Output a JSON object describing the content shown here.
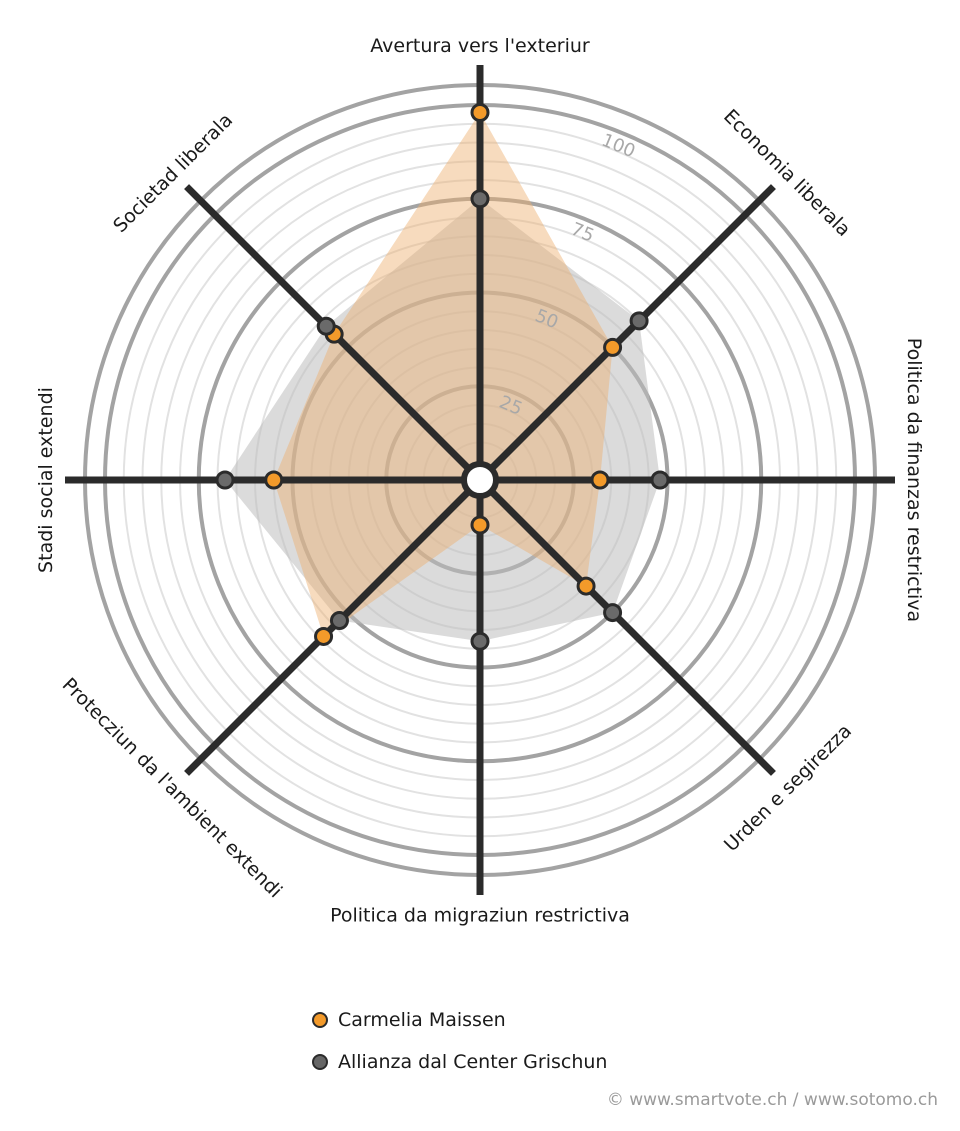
{
  "chart_data": {
    "type": "radar",
    "axes": [
      "Avertura vers l'exteriur",
      "Economia liberala",
      "Politica da finanzas restrictiva",
      "Urden e segirezza",
      "Politica da migraziun restrictiva",
      "Protecziun da l'ambient extendi",
      "Stadi social extendi",
      "Societad liberala"
    ],
    "rlim": [
      0,
      100
    ],
    "ring_labels": [
      "25",
      "50",
      "75",
      "100"
    ],
    "series": [
      {
        "name": "Carmelia Maissen",
        "color": "#f39a2a",
        "values": [
          98,
          50,
          32,
          40,
          12,
          59,
          55,
          55
        ]
      },
      {
        "name": "Allianza dal Center Grischun",
        "color": "#666666",
        "values": [
          75,
          60,
          48,
          50,
          43,
          53,
          68,
          58
        ]
      }
    ]
  },
  "legend": {
    "items": [
      {
        "label": "Carmelia Maissen",
        "color": "#f39a2a"
      },
      {
        "label": "Allianza dal Center Grischun",
        "color": "#666666"
      }
    ]
  },
  "footer": {
    "credit": "© www.smartvote.ch / www.sotomo.ch"
  }
}
